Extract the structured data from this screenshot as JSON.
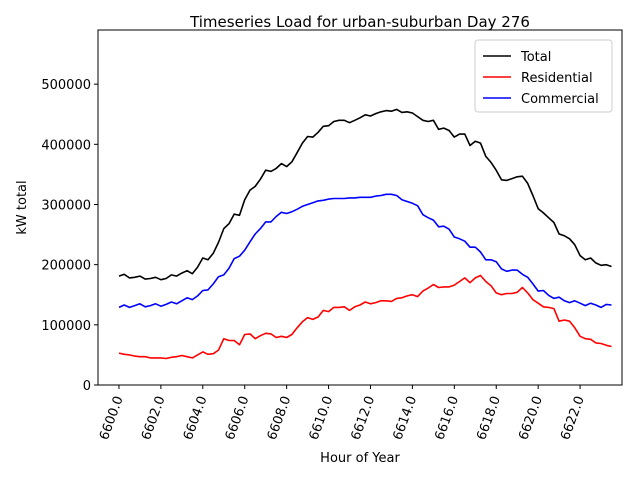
{
  "chart_data": {
    "type": "line",
    "title": "Timeseries Load for urban-suburban   Day 276",
    "xlabel": "Hour of Year",
    "ylabel": "kW total",
    "xlim": [
      6599.0,
      6624.0
    ],
    "ylim": [
      0,
      590000
    ],
    "x_ticks": [
      6600,
      6602,
      6604,
      6606,
      6608,
      6610,
      6612,
      6614,
      6616,
      6618,
      6620,
      6622
    ],
    "x_tick_labels": [
      "6600.0",
      "6602.0",
      "6604.0",
      "6606.0",
      "6608.0",
      "6610.0",
      "6612.0",
      "6614.0",
      "6616.0",
      "6618.0",
      "6620.0",
      "6622.0"
    ],
    "y_ticks": [
      0,
      100000,
      200000,
      300000,
      400000,
      500000
    ],
    "y_tick_labels": [
      "0",
      "100000",
      "200000",
      "300000",
      "400000",
      "500000"
    ],
    "legend_position": "top-right",
    "x": [
      6600.0,
      6600.25,
      6600.5,
      6600.75,
      6601.0,
      6601.25,
      6601.5,
      6601.75,
      6602.0,
      6602.25,
      6602.5,
      6602.75,
      6603.0,
      6603.25,
      6603.5,
      6603.75,
      6604.0,
      6604.25,
      6604.5,
      6604.75,
      6605.0,
      6605.25,
      6605.5,
      6605.75,
      6606.0,
      6606.25,
      6606.5,
      6606.75,
      6607.0,
      6607.25,
      6607.5,
      6607.75,
      6608.0,
      6608.25,
      6608.5,
      6608.75,
      6609.0,
      6609.25,
      6609.5,
      6609.75,
      6610.0,
      6610.25,
      6610.5,
      6610.75,
      6611.0,
      6611.25,
      6611.5,
      6611.75,
      6612.0,
      6612.25,
      6612.5,
      6612.75,
      6613.0,
      6613.25,
      6613.5,
      6613.75,
      6614.0,
      6614.25,
      6614.5,
      6614.75,
      6615.0,
      6615.25,
      6615.5,
      6615.75,
      6616.0,
      6616.25,
      6616.5,
      6616.75,
      6617.0,
      6617.25,
      6617.5,
      6617.75,
      6618.0,
      6618.25,
      6618.5,
      6618.75,
      6619.0,
      6619.25,
      6619.5,
      6619.75,
      6620.0,
      6620.25,
      6620.5,
      6620.75,
      6621.0,
      6621.25,
      6621.5,
      6621.75,
      6622.0,
      6622.25,
      6622.5,
      6622.75,
      6623.0,
      6623.25,
      6623.5
    ],
    "series": [
      {
        "name": "Total",
        "color": "#000000",
        "values": [
          181000,
          184000,
          178000,
          179000,
          181000,
          176000,
          177000,
          179000,
          175000,
          177000,
          183000,
          181000,
          186000,
          190000,
          185000,
          196000,
          211000,
          208000,
          219000,
          237000,
          260000,
          268000,
          284000,
          282000,
          308000,
          324000,
          330000,
          342000,
          357000,
          355000,
          360000,
          368000,
          363000,
          371000,
          386000,
          402000,
          413000,
          412000,
          420000,
          430000,
          431000,
          438000,
          440000,
          440000,
          436000,
          440000,
          444000,
          449000,
          447000,
          451000,
          454000,
          456000,
          455000,
          458000,
          453000,
          454000,
          452000,
          446000,
          440000,
          438000,
          440000,
          425000,
          427000,
          423000,
          412000,
          417000,
          417000,
          398000,
          405000,
          402000,
          380000,
          370000,
          357000,
          341000,
          340000,
          343000,
          346000,
          347000,
          335000,
          315000,
          293000,
          286000,
          278000,
          270000,
          251000,
          248000,
          243000,
          233000,
          215000,
          208000,
          211000,
          203000,
          199000,
          200000,
          197000
        ]
      },
      {
        "name": "Residential",
        "color": "#ff0000",
        "values": [
          53000,
          51000,
          50000,
          48000,
          47000,
          47000,
          45000,
          45000,
          45000,
          44000,
          46000,
          47000,
          49000,
          47000,
          45000,
          50000,
          55000,
          51000,
          52000,
          58000,
          77000,
          74000,
          74000,
          67000,
          84000,
          85000,
          77000,
          82000,
          86000,
          85000,
          79000,
          81000,
          79000,
          84000,
          95000,
          105000,
          112000,
          109000,
          113000,
          124000,
          122000,
          129000,
          129000,
          130000,
          124000,
          130000,
          133000,
          138000,
          135000,
          137000,
          140000,
          140000,
          139000,
          144000,
          145000,
          148000,
          150000,
          147000,
          156000,
          161000,
          167000,
          162000,
          163000,
          163000,
          166000,
          172000,
          178000,
          170000,
          178000,
          182000,
          172000,
          165000,
          153000,
          150000,
          152000,
          152000,
          154000,
          162000,
          153000,
          142000,
          136000,
          130000,
          129000,
          127000,
          106000,
          108000,
          106000,
          95000,
          81000,
          77000,
          76000,
          70000,
          69000,
          66000,
          64000
        ]
      },
      {
        "name": "Commercial",
        "color": "#0000ff",
        "values": [
          129000,
          133000,
          129000,
          132000,
          135000,
          130000,
          132000,
          135000,
          131000,
          134000,
          138000,
          135000,
          140000,
          145000,
          142000,
          148000,
          157000,
          158000,
          168000,
          180000,
          183000,
          194000,
          210000,
          214000,
          224000,
          238000,
          251000,
          260000,
          271000,
          271000,
          280000,
          287000,
          285000,
          288000,
          292000,
          297000,
          300000,
          303000,
          306000,
          307000,
          309000,
          310000,
          310000,
          310000,
          311000,
          311000,
          312000,
          312000,
          312000,
          314000,
          315000,
          317000,
          317000,
          315000,
          308000,
          305000,
          302000,
          298000,
          283000,
          278000,
          274000,
          263000,
          264000,
          259000,
          246000,
          243000,
          239000,
          229000,
          229000,
          221000,
          208000,
          208000,
          205000,
          193000,
          189000,
          191000,
          191000,
          184000,
          179000,
          168000,
          156000,
          157000,
          149000,
          144000,
          146000,
          140000,
          137000,
          140000,
          136000,
          132000,
          136000,
          133000,
          129000,
          134000,
          133000
        ]
      }
    ]
  }
}
